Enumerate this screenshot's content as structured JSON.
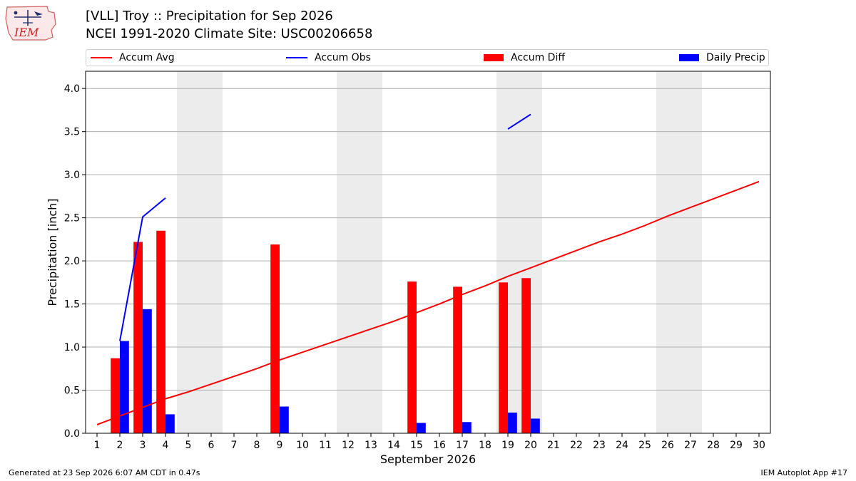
{
  "header": {
    "title_line1": "[VLL] Troy :: Precipitation for Sep 2026",
    "title_line2": "NCEI 1991-2020 Climate Site: USC00206658",
    "logo_text": "IEM"
  },
  "legend": {
    "items": [
      {
        "label": "Accum Avg",
        "kind": "line",
        "color": "#ff0000"
      },
      {
        "label": "Accum Obs",
        "kind": "line",
        "color": "#0000ff"
      },
      {
        "label": "Accum Diff",
        "kind": "box",
        "color": "#ff0000"
      },
      {
        "label": "Daily Precip",
        "kind": "box",
        "color": "#0000ff"
      }
    ]
  },
  "chart_data": {
    "type": "bar",
    "xlabel": "September 2026",
    "ylabel": "Precipitation [inch]",
    "xlim": [
      0.5,
      30.5
    ],
    "ylim": [
      0,
      4.2
    ],
    "yticks": [
      0.0,
      0.5,
      1.0,
      1.5,
      2.0,
      2.5,
      3.0,
      3.5,
      4.0
    ],
    "ytick_labels": [
      "0.0",
      "0.5",
      "1.0",
      "1.5",
      "2.0",
      "2.5",
      "3.0",
      "3.5",
      "4.0"
    ],
    "xticks": [
      1,
      2,
      3,
      4,
      5,
      6,
      7,
      8,
      9,
      10,
      11,
      12,
      13,
      14,
      15,
      16,
      17,
      18,
      19,
      20,
      21,
      22,
      23,
      24,
      25,
      26,
      27,
      28,
      29,
      30
    ],
    "grid": "horizontal",
    "weekend_shading": [
      [
        4.5,
        6.5
      ],
      [
        11.5,
        13.5
      ],
      [
        18.5,
        20.5
      ],
      [
        25.5,
        27.5
      ]
    ],
    "series": [
      {
        "name": "Accum Avg",
        "kind": "line",
        "color": "#ff0000",
        "x": [
          1,
          2,
          3,
          4,
          5,
          6,
          7,
          8,
          9,
          10,
          11,
          12,
          13,
          14,
          15,
          16,
          17,
          18,
          19,
          20,
          21,
          22,
          23,
          24,
          25,
          26,
          27,
          28,
          29,
          30
        ],
        "y": [
          0.1,
          0.2,
          0.3,
          0.4,
          0.48,
          0.57,
          0.66,
          0.75,
          0.85,
          0.94,
          1.03,
          1.12,
          1.21,
          1.3,
          1.4,
          1.5,
          1.61,
          1.71,
          1.82,
          1.92,
          2.02,
          2.12,
          2.22,
          2.31,
          2.41,
          2.52,
          2.62,
          2.72,
          2.82,
          2.92
        ]
      },
      {
        "name": "Accum Obs",
        "kind": "line",
        "color": "#0000ff",
        "segments": [
          {
            "x": [
              2,
              3,
              4
            ],
            "y": [
              1.07,
              2.51,
              2.73
            ]
          },
          {
            "x": [
              19,
              20
            ],
            "y": [
              3.53,
              3.7
            ]
          }
        ]
      },
      {
        "name": "Accum Diff",
        "kind": "bar",
        "color": "#ff0000",
        "x": [
          2,
          3,
          4,
          9,
          15,
          17,
          19,
          20
        ],
        "values": [
          0.87,
          2.22,
          2.35,
          2.19,
          1.76,
          1.7,
          1.75,
          1.8
        ]
      },
      {
        "name": "Daily Precip",
        "kind": "bar",
        "color": "#0000ff",
        "x": [
          2,
          3,
          4,
          9,
          15,
          17,
          19,
          20
        ],
        "values": [
          1.07,
          1.44,
          0.22,
          0.31,
          0.12,
          0.13,
          0.24,
          0.17
        ]
      }
    ]
  },
  "footer": {
    "left": "Generated at 23 Sep 2026 6:07 AM CDT in 0.47s",
    "right": "IEM Autoplot App #17"
  }
}
